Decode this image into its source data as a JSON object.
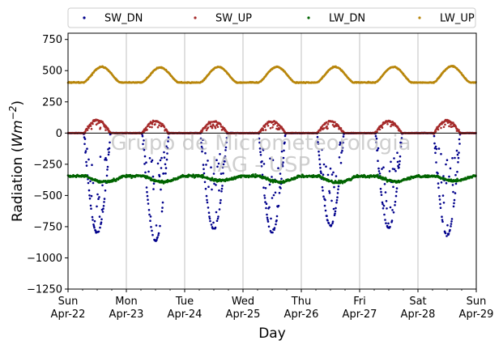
{
  "chart_data": {
    "type": "scatter",
    "title": "",
    "xlabel": "Day",
    "ylabel_prefix": "Radiation (",
    "ylabel_unit": "Wm",
    "ylabel_exp": "−2",
    "ylabel_suffix": ")",
    "xlim": [
      0,
      7
    ],
    "ylim": [
      -1250,
      800
    ],
    "yticks": [
      -1250,
      -1000,
      -750,
      -500,
      -250,
      0,
      250,
      500,
      750
    ],
    "ytick_labels": [
      "−1250",
      "−1000",
      "−750",
      "−500",
      "−250",
      "0",
      "250",
      "500",
      "750"
    ],
    "xticks": [
      {
        "day": 0,
        "weekday": "Sun",
        "date": "Apr-22"
      },
      {
        "day": 1,
        "weekday": "Mon",
        "date": "Apr-23"
      },
      {
        "day": 2,
        "weekday": "Tue",
        "date": "Apr-24"
      },
      {
        "day": 3,
        "weekday": "Wed",
        "date": "Apr-25"
      },
      {
        "day": 4,
        "weekday": "Thu",
        "date": "Apr-26"
      },
      {
        "day": 5,
        "weekday": "Fri",
        "date": "Apr-27"
      },
      {
        "day": 6,
        "weekday": "Sat",
        "date": "Apr-28"
      },
      {
        "day": 7,
        "weekday": "Sun",
        "date": "Apr-29"
      }
    ],
    "grid": "vertical",
    "legend_position": "top, above plot",
    "watermark_lines": [
      "Grupo de Micrometeorologia",
      "IAG - USP"
    ],
    "series": [
      {
        "name": "SW_DN",
        "color": "#00008b",
        "baseline": 0,
        "peak": [
          -800,
          -860,
          -770,
          -800,
          -740,
          -760,
          -820
        ]
      },
      {
        "name": "SW_UP",
        "color": "#a52a2a",
        "baseline": 0,
        "peak": [
          105,
          95,
          95,
          95,
          95,
          95,
          100
        ]
      },
      {
        "name": "LW_DN",
        "color": "#006400",
        "baseline": -345,
        "peak": [
          -390,
          -390,
          -380,
          -390,
          -395,
          -385,
          -380
        ]
      },
      {
        "name": "LW_UP",
        "color": "#b8860b",
        "baseline": 405,
        "peak": [
          530,
          525,
          530,
          530,
          530,
          530,
          535
        ]
      }
    ]
  }
}
